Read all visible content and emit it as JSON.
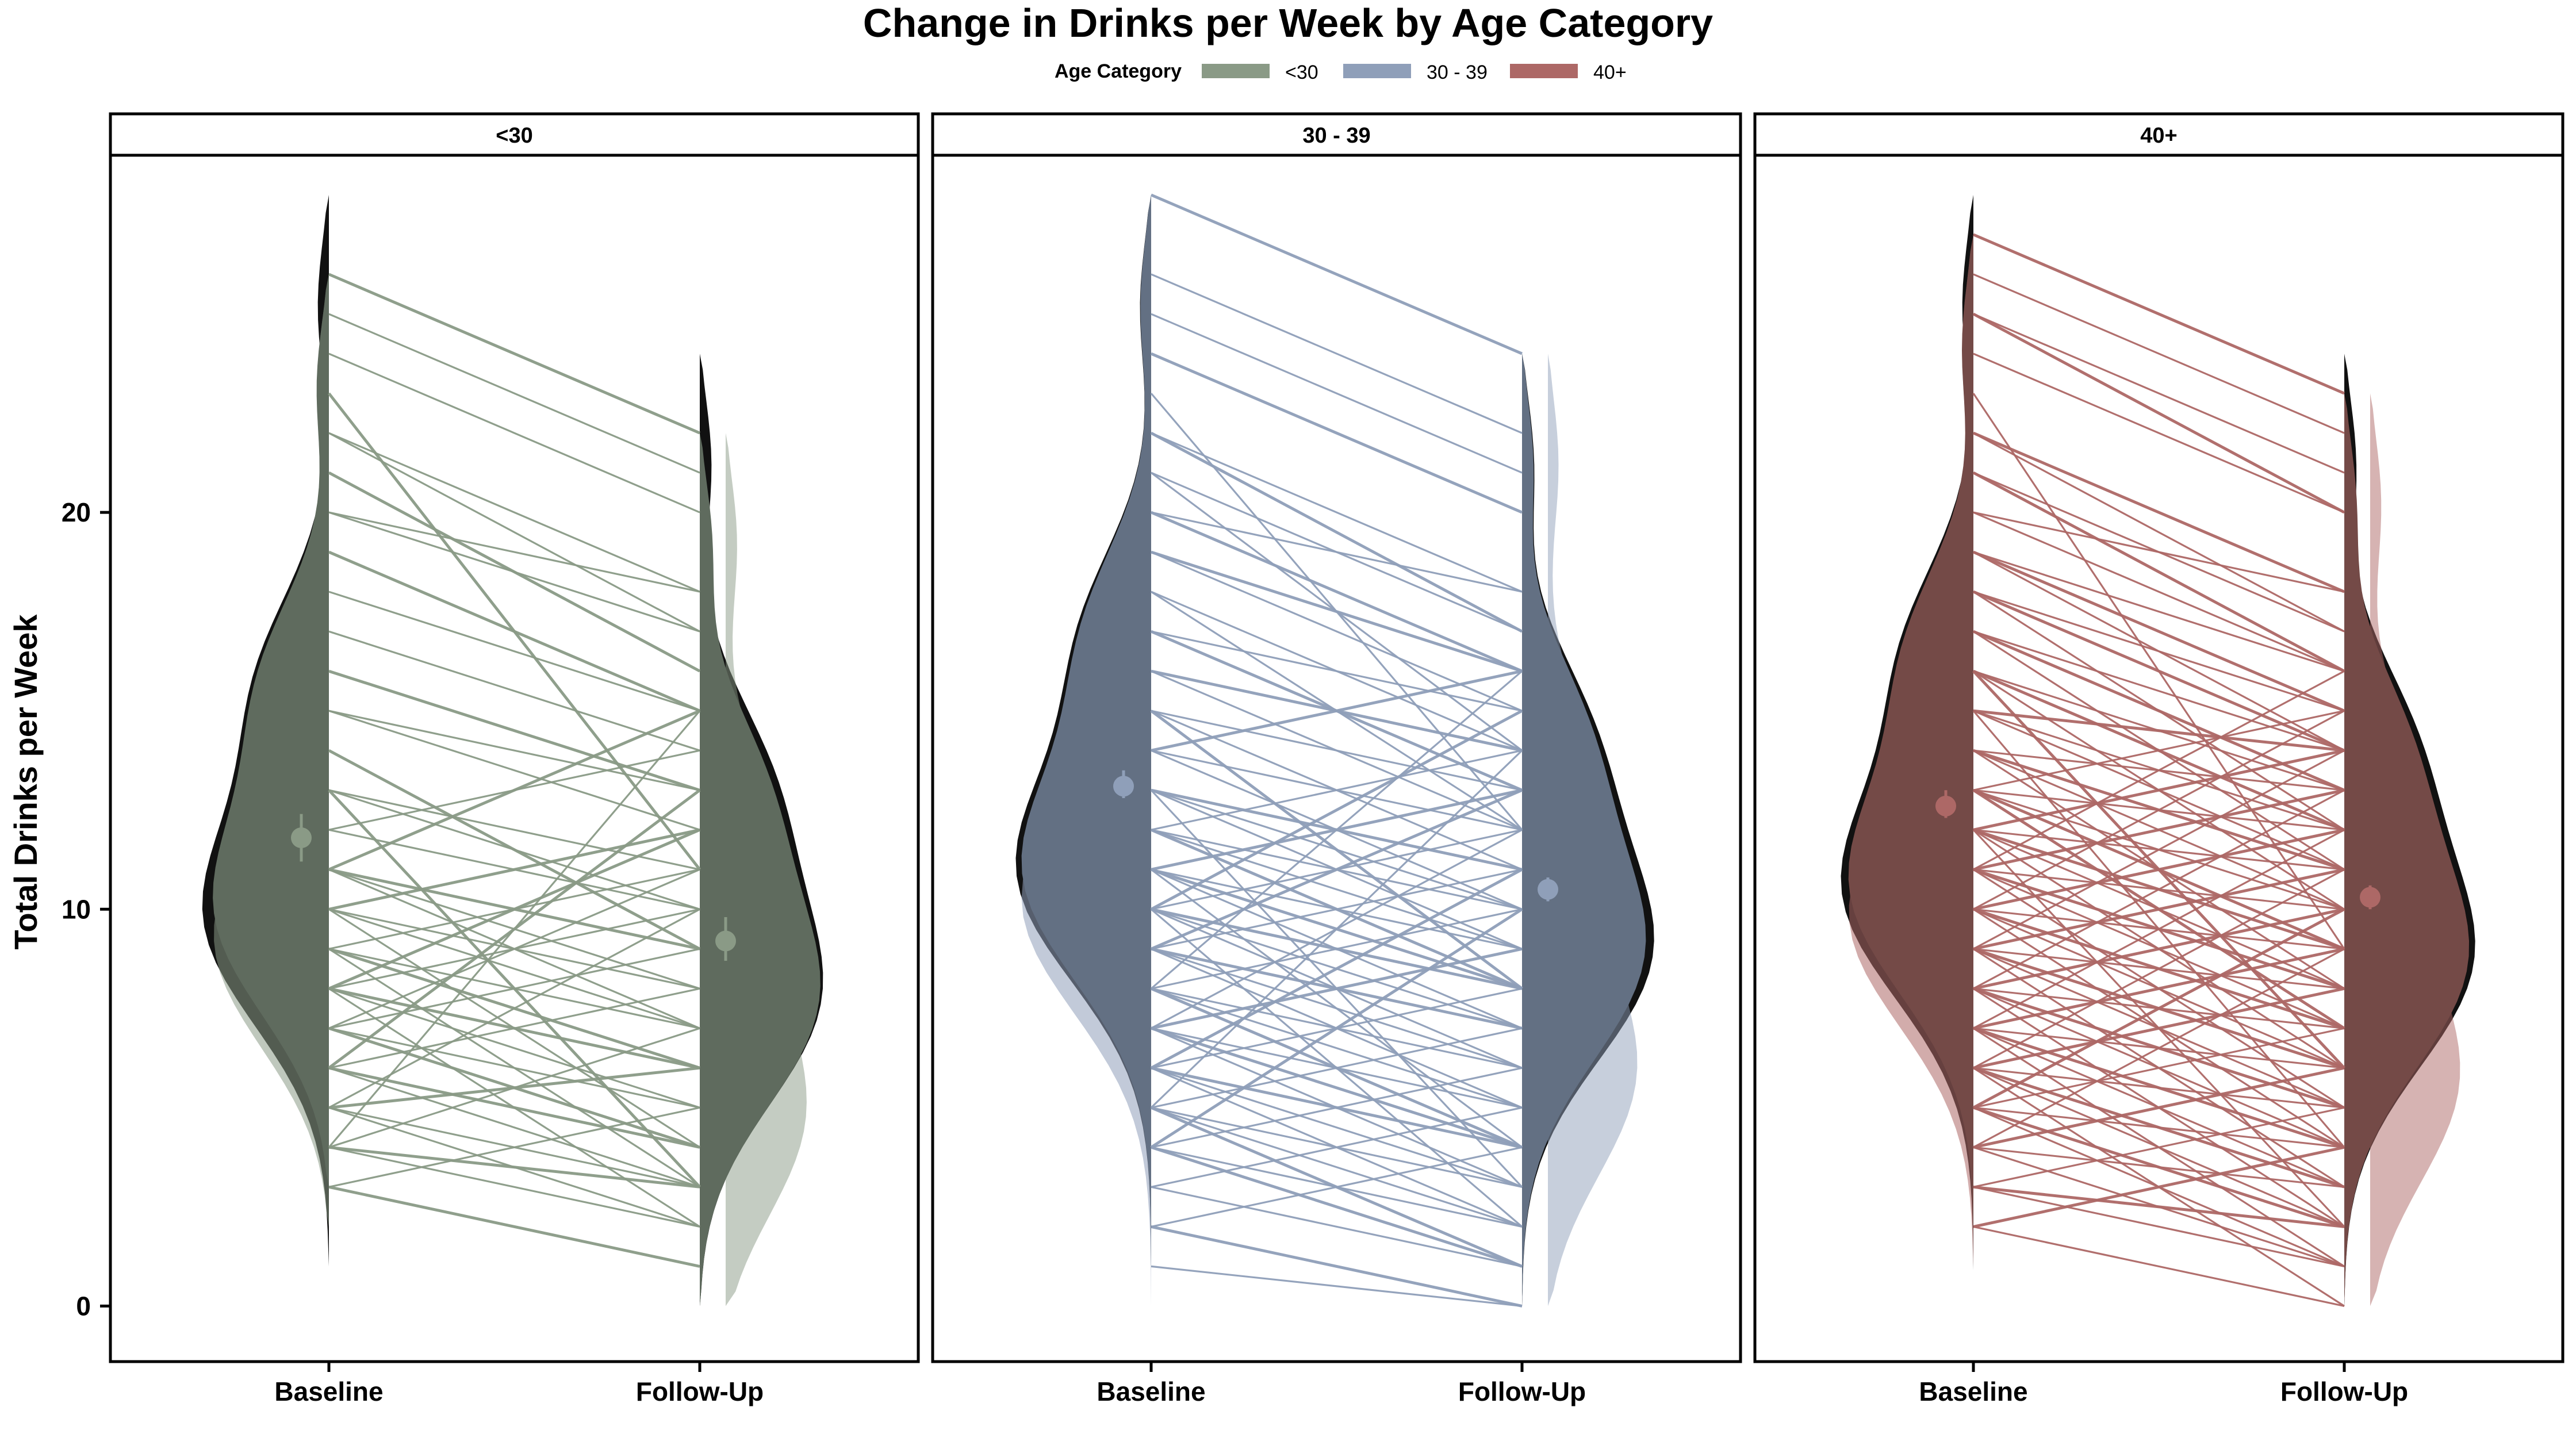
{
  "chart_data": {
    "type": "line",
    "title": "Change in Drinks per Week by Age Category",
    "ylabel": "Total Drinks per Week",
    "xlabel": "",
    "x_categories": [
      "Baseline",
      "Follow-Up"
    ],
    "ylim": [
      -1.4,
      29
    ],
    "y_ticks": [
      0,
      10,
      20
    ],
    "legend": {
      "title": "Age Category",
      "placement": "top",
      "entries": [
        "<30",
        "30 - 39",
        "40+"
      ]
    },
    "panels": [
      {
        "label": "<30",
        "color": "#8a9a86",
        "violin_fill": "#5f6b5e",
        "density_outline": "#111111",
        "baseline_mean": 11.8,
        "baseline_ci": [
          11.2,
          12.4
        ],
        "followup_mean": 9.2,
        "followup_ci": [
          8.7,
          9.8
        ],
        "baseline_range": [
          3,
          26
        ],
        "followup_range": [
          0,
          22
        ],
        "pairs": [
          [
            26,
            22
          ],
          [
            25,
            21
          ],
          [
            24,
            20
          ],
          [
            23,
            11
          ],
          [
            22,
            18
          ],
          [
            22,
            17
          ],
          [
            21,
            16
          ],
          [
            20,
            18
          ],
          [
            20,
            17
          ],
          [
            19,
            15
          ],
          [
            18,
            15
          ],
          [
            17,
            14
          ],
          [
            16,
            13
          ],
          [
            15,
            13
          ],
          [
            15,
            12
          ],
          [
            14,
            9
          ],
          [
            13,
            11
          ],
          [
            13,
            10
          ],
          [
            13,
            3
          ],
          [
            12,
            10
          ],
          [
            12,
            14
          ],
          [
            11,
            9
          ],
          [
            11,
            8
          ],
          [
            11,
            7
          ],
          [
            11,
            15
          ],
          [
            10,
            8
          ],
          [
            10,
            7
          ],
          [
            10,
            12
          ],
          [
            10,
            4
          ],
          [
            9,
            7
          ],
          [
            9,
            6
          ],
          [
            9,
            11
          ],
          [
            9,
            3
          ],
          [
            8,
            6
          ],
          [
            8,
            5
          ],
          [
            8,
            10
          ],
          [
            8,
            12
          ],
          [
            8,
            2
          ],
          [
            7,
            5
          ],
          [
            7,
            4
          ],
          [
            7,
            9
          ],
          [
            7,
            11
          ],
          [
            6,
            4
          ],
          [
            6,
            3
          ],
          [
            6,
            8
          ],
          [
            6,
            13
          ],
          [
            5,
            3
          ],
          [
            5,
            2
          ],
          [
            5,
            6
          ],
          [
            5,
            10
          ],
          [
            4,
            2
          ],
          [
            4,
            3
          ],
          [
            4,
            7
          ],
          [
            4,
            15
          ],
          [
            3,
            1
          ],
          [
            3,
            5
          ]
        ]
      },
      {
        "label": "30 - 39",
        "color": "#8f9fb9",
        "violin_fill": "#637083",
        "density_outline": "#111111",
        "baseline_mean": 13.1,
        "baseline_ci": [
          12.8,
          13.5
        ],
        "followup_mean": 10.5,
        "followup_ci": [
          10.2,
          10.8
        ],
        "baseline_range": [
          1,
          28
        ],
        "followup_range": [
          0,
          24
        ],
        "pairs": [
          [
            28,
            24
          ],
          [
            26,
            22
          ],
          [
            25,
            21
          ],
          [
            24,
            20
          ],
          [
            23,
            12
          ],
          [
            22,
            18
          ],
          [
            22,
            17
          ],
          [
            21,
            17
          ],
          [
            21,
            14
          ],
          [
            20,
            16
          ],
          [
            20,
            18
          ],
          [
            19,
            15
          ],
          [
            19,
            16
          ],
          [
            18,
            14
          ],
          [
            18,
            12
          ],
          [
            17,
            13
          ],
          [
            17,
            15
          ],
          [
            16,
            12
          ],
          [
            16,
            14
          ],
          [
            15,
            11
          ],
          [
            15,
            13
          ],
          [
            15,
            8
          ],
          [
            14,
            10
          ],
          [
            14,
            12
          ],
          [
            14,
            16
          ],
          [
            13,
            10
          ],
          [
            13,
            9
          ],
          [
            13,
            11
          ],
          [
            13,
            3
          ],
          [
            12,
            9
          ],
          [
            12,
            8
          ],
          [
            12,
            10
          ],
          [
            12,
            14
          ],
          [
            11,
            8
          ],
          [
            11,
            9
          ],
          [
            11,
            7
          ],
          [
            11,
            13
          ],
          [
            11,
            4
          ],
          [
            10,
            7
          ],
          [
            10,
            8
          ],
          [
            10,
            6
          ],
          [
            10,
            12
          ],
          [
            10,
            15
          ],
          [
            10,
            2
          ],
          [
            9,
            6
          ],
          [
            9,
            7
          ],
          [
            9,
            5
          ],
          [
            9,
            11
          ],
          [
            9,
            13
          ],
          [
            8,
            5
          ],
          [
            8,
            6
          ],
          [
            8,
            4
          ],
          [
            8,
            10
          ],
          [
            8,
            16
          ],
          [
            7,
            4
          ],
          [
            7,
            5
          ],
          [
            7,
            3
          ],
          [
            7,
            9
          ],
          [
            7,
            12
          ],
          [
            6,
            3
          ],
          [
            6,
            4
          ],
          [
            6,
            2
          ],
          [
            6,
            8
          ],
          [
            6,
            11
          ],
          [
            5,
            2
          ],
          [
            5,
            3
          ],
          [
            5,
            1
          ],
          [
            5,
            7
          ],
          [
            5,
            14
          ],
          [
            4,
            1
          ],
          [
            4,
            2
          ],
          [
            4,
            6
          ],
          [
            4,
            10
          ],
          [
            3,
            1
          ],
          [
            3,
            5
          ],
          [
            2,
            0
          ],
          [
            2,
            4
          ],
          [
            1,
            0
          ]
        ]
      },
      {
        "label": "40+",
        "color": "#ad6866",
        "violin_fill": "#744a47",
        "density_outline": "#111111",
        "baseline_mean": 12.6,
        "baseline_ci": [
          12.3,
          13.0
        ],
        "followup_mean": 10.3,
        "followup_ci": [
          10.0,
          10.6
        ],
        "baseline_range": [
          2,
          27
        ],
        "followup_range": [
          0,
          23
        ],
        "pairs": [
          [
            27,
            23
          ],
          [
            26,
            22
          ],
          [
            25,
            21
          ],
          [
            25,
            20
          ],
          [
            24,
            20
          ],
          [
            23,
            9
          ],
          [
            22,
            18
          ],
          [
            22,
            17
          ],
          [
            21,
            17
          ],
          [
            21,
            16
          ],
          [
            20,
            16
          ],
          [
            20,
            18
          ],
          [
            19,
            15
          ],
          [
            19,
            16
          ],
          [
            19,
            14
          ],
          [
            18,
            14
          ],
          [
            18,
            15
          ],
          [
            18,
            12
          ],
          [
            17,
            13
          ],
          [
            17,
            14
          ],
          [
            17,
            11
          ],
          [
            16,
            12
          ],
          [
            16,
            13
          ],
          [
            16,
            10
          ],
          [
            16,
            6
          ],
          [
            15,
            11
          ],
          [
            15,
            12
          ],
          [
            15,
            14
          ],
          [
            15,
            4
          ],
          [
            14,
            10
          ],
          [
            14,
            11
          ],
          [
            14,
            13
          ],
          [
            14,
            8
          ],
          [
            13,
            9
          ],
          [
            13,
            10
          ],
          [
            13,
            12
          ],
          [
            13,
            7
          ],
          [
            13,
            15
          ],
          [
            12,
            8
          ],
          [
            12,
            9
          ],
          [
            12,
            11
          ],
          [
            12,
            6
          ],
          [
            12,
            14
          ],
          [
            12,
            2
          ],
          [
            11,
            7
          ],
          [
            11,
            8
          ],
          [
            11,
            10
          ],
          [
            11,
            5
          ],
          [
            11,
            13
          ],
          [
            11,
            16
          ],
          [
            10,
            6
          ],
          [
            10,
            7
          ],
          [
            10,
            9
          ],
          [
            10,
            4
          ],
          [
            10,
            12
          ],
          [
            10,
            15
          ],
          [
            9,
            5
          ],
          [
            9,
            6
          ],
          [
            9,
            8
          ],
          [
            9,
            3
          ],
          [
            9,
            11
          ],
          [
            9,
            14
          ],
          [
            8,
            4
          ],
          [
            8,
            5
          ],
          [
            8,
            7
          ],
          [
            8,
            2
          ],
          [
            8,
            10
          ],
          [
            8,
            13
          ],
          [
            7,
            3
          ],
          [
            7,
            4
          ],
          [
            7,
            6
          ],
          [
            7,
            1
          ],
          [
            7,
            9
          ],
          [
            7,
            12
          ],
          [
            6,
            2
          ],
          [
            6,
            3
          ],
          [
            6,
            5
          ],
          [
            6,
            0
          ],
          [
            6,
            8
          ],
          [
            6,
            11
          ],
          [
            5,
            1
          ],
          [
            5,
            2
          ],
          [
            5,
            4
          ],
          [
            5,
            7
          ],
          [
            5,
            10
          ],
          [
            4,
            1
          ],
          [
            4,
            3
          ],
          [
            4,
            6
          ],
          [
            4,
            9
          ],
          [
            3,
            1
          ],
          [
            3,
            2
          ],
          [
            3,
            5
          ],
          [
            2,
            0
          ],
          [
            2,
            4
          ]
        ]
      }
    ]
  }
}
